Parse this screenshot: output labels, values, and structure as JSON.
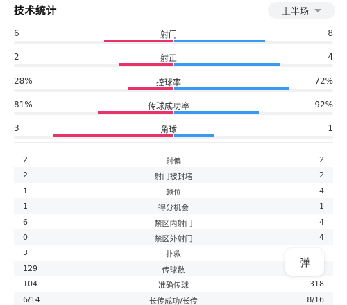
{
  "header": {
    "title": "技术统计",
    "half_select": "上半场"
  },
  "bar_stats": [
    {
      "name": "射门",
      "left": "6",
      "right": "8",
      "left_share": 0.429,
      "right_share": 0.571
    },
    {
      "name": "射正",
      "left": "2",
      "right": "4",
      "left_share": 0.333,
      "right_share": 0.667
    },
    {
      "name": "控球率",
      "left": "28%",
      "right": "72%",
      "left_share": 0.28,
      "right_share": 0.72
    },
    {
      "name": "传球成功率",
      "left": "81%",
      "right": "92%",
      "left_share": 0.468,
      "right_share": 0.532
    },
    {
      "name": "角球",
      "left": "3",
      "right": "1",
      "left_share": 0.75,
      "right_share": 0.25
    }
  ],
  "table_rows": [
    {
      "name": "射偏",
      "left": "2",
      "right": "2"
    },
    {
      "name": "射门被封堵",
      "left": "2",
      "right": "2"
    },
    {
      "name": "越位",
      "left": "1",
      "right": "4"
    },
    {
      "name": "得分机会",
      "left": "1",
      "right": "1"
    },
    {
      "name": "禁区内射门",
      "left": "6",
      "right": "4"
    },
    {
      "name": "禁区外射门",
      "left": "0",
      "right": "4"
    },
    {
      "name": "扑救",
      "left": "3",
      "right": "1"
    },
    {
      "name": "传球数",
      "left": "129",
      "right": ""
    },
    {
      "name": "准确传球",
      "left": "104",
      "right": "318"
    },
    {
      "name": "长传成功/长传",
      "left": "6/14",
      "right": "8/16"
    }
  ],
  "float_button": "弹",
  "colors": {
    "home": "#e8336a",
    "away": "#3a9af0"
  }
}
